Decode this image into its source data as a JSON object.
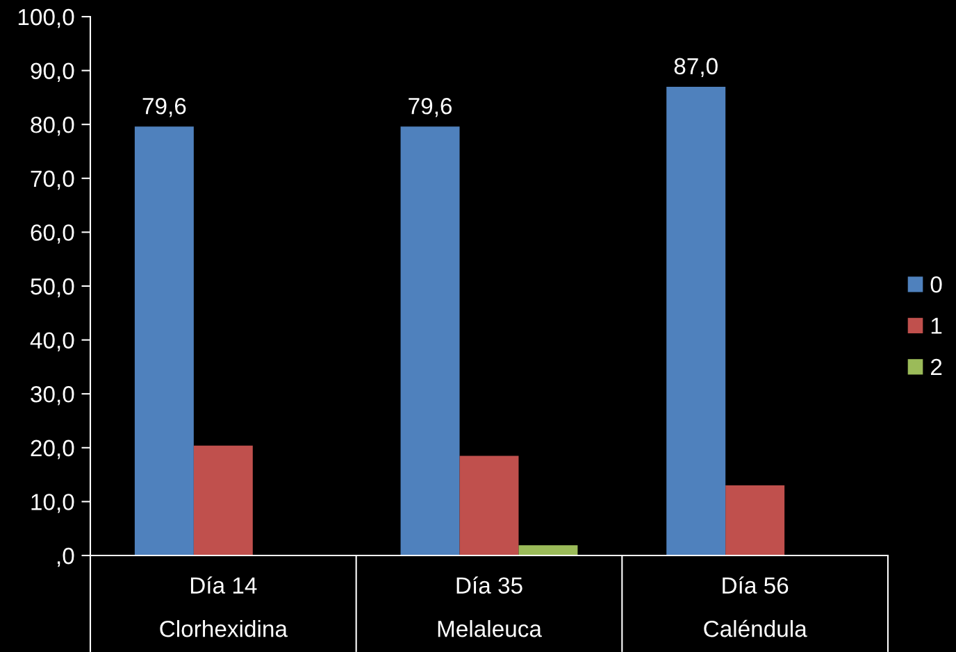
{
  "chart_data": {
    "type": "bar",
    "categories": [
      "Día 14\nClorhexidina",
      "Día 35\nMelaleuca",
      "Día 56\nCaléndula"
    ],
    "series": [
      {
        "name": "0",
        "color": "#4f81bd",
        "values": [
          79.6,
          79.6,
          87.0
        ],
        "value_labels": [
          "79,6",
          "79,6",
          "87,0"
        ]
      },
      {
        "name": "1",
        "color": "#c0504d",
        "values": [
          20.4,
          18.5,
          13.0
        ]
      },
      {
        "name": "2",
        "color": "#9bbb59",
        "values": [
          null,
          1.9,
          null
        ]
      }
    ],
    "ylim": [
      0,
      100
    ],
    "yticks": [
      {
        "value": 0,
        "label": ",0"
      },
      {
        "value": 10,
        "label": "10,0"
      },
      {
        "value": 20,
        "label": "20,0"
      },
      {
        "value": 30,
        "label": "30,0"
      },
      {
        "value": 40,
        "label": "40,0"
      },
      {
        "value": 50,
        "label": "50,0"
      },
      {
        "value": 60,
        "label": "60,0"
      },
      {
        "value": 70,
        "label": "70,0"
      },
      {
        "value": 80,
        "label": "80,0"
      },
      {
        "value": 90,
        "label": "90,0"
      },
      {
        "value": 100,
        "label": "100,0"
      }
    ],
    "grid": false,
    "legend": "right"
  }
}
